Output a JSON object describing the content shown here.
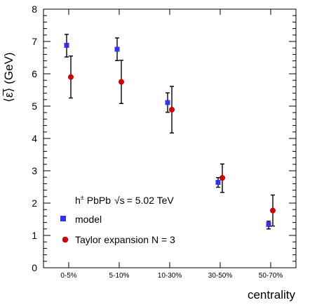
{
  "chart_data": {
    "type": "scatter",
    "ylabel_prefix": "⟨ε̅⟩",
    "ylabel": "(GeV)",
    "xlabel": "centrality",
    "ylim": [
      0,
      8
    ],
    "yticks": [
      "0",
      "1",
      "2",
      "3",
      "4",
      "5",
      "6",
      "7",
      "8"
    ],
    "categories": [
      "0-5%",
      "5-10%",
      "10-30%",
      "30-50%",
      "50-70%"
    ],
    "grid": false,
    "legend_position": "bottom-left",
    "legend_header_prefix": "h",
    "legend_header_sup": "±",
    "legend_header_system": "PbPb",
    "legend_header_sqrt": "√s",
    "legend_header_energy": "= 5.02 TeV",
    "series": [
      {
        "name": "model",
        "marker": "square",
        "color": "#3333ee",
        "values": [
          6.88,
          6.76,
          5.11,
          2.64,
          1.34
        ],
        "err_low": [
          0.36,
          0.35,
          0.3,
          0.15,
          0.14
        ],
        "err_high": [
          0.34,
          0.35,
          0.3,
          0.15,
          0.1
        ]
      },
      {
        "name": "Taylor expansion N = 3",
        "marker": "circle",
        "color": "#cc0000",
        "values": [
          5.9,
          5.75,
          4.89,
          2.78,
          1.77
        ],
        "err_low": [
          0.65,
          0.67,
          0.72,
          0.45,
          0.48
        ],
        "err_high": [
          0.65,
          0.67,
          0.72,
          0.43,
          0.48
        ]
      }
    ]
  }
}
